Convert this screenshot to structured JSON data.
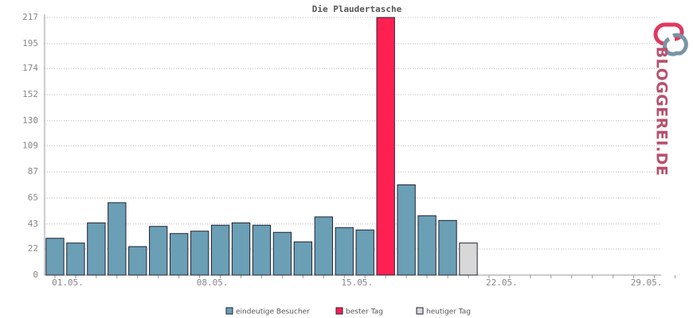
{
  "chart_data": {
    "type": "bar",
    "title": "Die Plaudertasche",
    "brand": "BLOGGEREI.DE",
    "categories": [
      "01.05.",
      null,
      null,
      null,
      null,
      null,
      null,
      "08.05.",
      null,
      null,
      null,
      null,
      null,
      null,
      "15.05.",
      null,
      null,
      null,
      null,
      null,
      null,
      "22.05.",
      null,
      null,
      null,
      null,
      null,
      null,
      "29.05.",
      null,
      null
    ],
    "series": [
      {
        "name": "eindeutige Besucher",
        "color": "#6a9fb5",
        "values": [
          31,
          27,
          44,
          61,
          24,
          41,
          35,
          37,
          42,
          44,
          42,
          36,
          28,
          49,
          40,
          38,
          null,
          76,
          50,
          46,
          null,
          null,
          null,
          null,
          null,
          null,
          null,
          null,
          null,
          null,
          null
        ]
      },
      {
        "name": "bester Tag",
        "color": "#ff2052",
        "values": [
          null,
          null,
          null,
          null,
          null,
          null,
          null,
          null,
          null,
          null,
          null,
          null,
          null,
          null,
          null,
          null,
          217,
          null,
          null,
          null,
          null,
          null,
          null,
          null,
          null,
          null,
          null,
          null,
          null,
          null,
          null
        ]
      },
      {
        "name": "heutiger Tag",
        "color": "#d8d8d8",
        "values": [
          null,
          null,
          null,
          null,
          null,
          null,
          null,
          null,
          null,
          null,
          null,
          null,
          null,
          null,
          null,
          null,
          null,
          null,
          null,
          null,
          27,
          null,
          null,
          null,
          null,
          null,
          null,
          null,
          null,
          null,
          null
        ]
      }
    ],
    "ylim": [
      0,
      217
    ],
    "yticks": [
      0,
      22,
      43,
      65,
      87,
      109,
      130,
      152,
      174,
      195,
      217
    ],
    "grid": true
  }
}
